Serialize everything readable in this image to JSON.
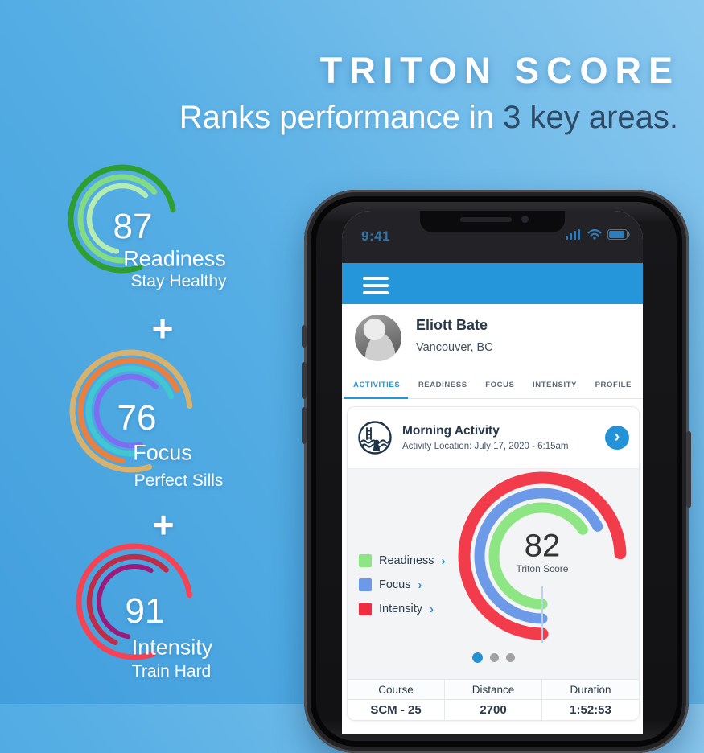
{
  "hero": {
    "title": "TRITON SCORE",
    "subtitle_light": "Ranks performance in ",
    "subtitle_dark": "3 key areas.",
    "plus": "+"
  },
  "colors": {
    "accent_blue": "#2596d9",
    "background_top_right": "#8cc9ef",
    "background_bottom_left": "#429edd",
    "dark_navy_text": "#2e4a66"
  },
  "left_gauges": [
    {
      "score": "87",
      "label": "Readiness",
      "sublabel": "Stay Healthy",
      "arcs": [
        {
          "r": 64,
          "w": 7,
          "color": "#2d9e2f",
          "start": 70,
          "sweep": 280
        },
        {
          "r": 52,
          "w": 7,
          "color": "#83dc82",
          "start": 88,
          "sweep": 232
        },
        {
          "r": 41,
          "w": 6.5,
          "color": "#b5ecb2",
          "start": 100,
          "sweep": 215
        }
      ]
    },
    {
      "score": "76",
      "label": "Focus",
      "sublabel": "Perfect Sills",
      "arcs": [
        {
          "r": 73,
          "w": 7,
          "color": "#d8b26d",
          "start": 72,
          "sweep": 283
        },
        {
          "r": 63,
          "w": 7,
          "color": "#ea803e",
          "start": 100,
          "sweep": 235
        },
        {
          "r": 53,
          "w": 7,
          "color": "#41c7d1",
          "start": 88,
          "sweep": 252
        },
        {
          "r": 43,
          "w": 6.5,
          "color": "#7e6cf2",
          "start": 75,
          "sweep": 240
        }
      ]
    },
    {
      "score": "91",
      "label": "Intensity",
      "sublabel": "Train Hard",
      "arcs": [
        {
          "r": 69,
          "w": 7,
          "color": "#f54353",
          "start": 70,
          "sweep": 283
        },
        {
          "r": 56,
          "w": 6.5,
          "color": "#bf2c48",
          "start": 115,
          "sweep": 200
        },
        {
          "r": 44,
          "w": 6,
          "color": "#9c1a7c",
          "start": 100,
          "sweep": 198
        }
      ]
    }
  ],
  "phone": {
    "statusbar": {
      "time": "9:41"
    },
    "profile": {
      "name": "Eliott Bate",
      "location": "Vancouver, BC"
    },
    "tabs": [
      {
        "label": "ACTIVITIES"
      },
      {
        "label": "READINESS"
      },
      {
        "label": "FOCUS"
      },
      {
        "label": "INTENSITY"
      },
      {
        "label": "PROFILE"
      }
    ],
    "card": {
      "title": "Morning Activity",
      "subtitle": "Activity Location: July 17, 2020 - 6:15am",
      "chevron": "›",
      "gauge": {
        "score": "82",
        "caption": "Triton Score",
        "arcs": [
          {
            "r": 97,
            "w": 15,
            "color": "#f23c4c",
            "start": 90,
            "sweep": 268
          },
          {
            "r": 78,
            "w": 13,
            "color": "#6d9ae8",
            "start": 90,
            "sweep": 242
          },
          {
            "r": 60,
            "w": 13,
            "color": "#8de583",
            "start": 90,
            "sweep": 237
          }
        ]
      },
      "legend": [
        {
          "label": "Readiness",
          "color": "#8de583",
          "chevron": "›"
        },
        {
          "label": "Focus",
          "color": "#6d9ae8",
          "chevron": "›"
        },
        {
          "label": "Intensity",
          "color": "#ef2f40",
          "chevron": "›"
        }
      ],
      "pagination": {
        "count": 3,
        "active": 0
      },
      "table": {
        "headers": [
          "Course",
          "Distance",
          "Duration"
        ],
        "row": [
          "SCM - 25",
          "2700",
          "1:52:53"
        ]
      }
    }
  }
}
